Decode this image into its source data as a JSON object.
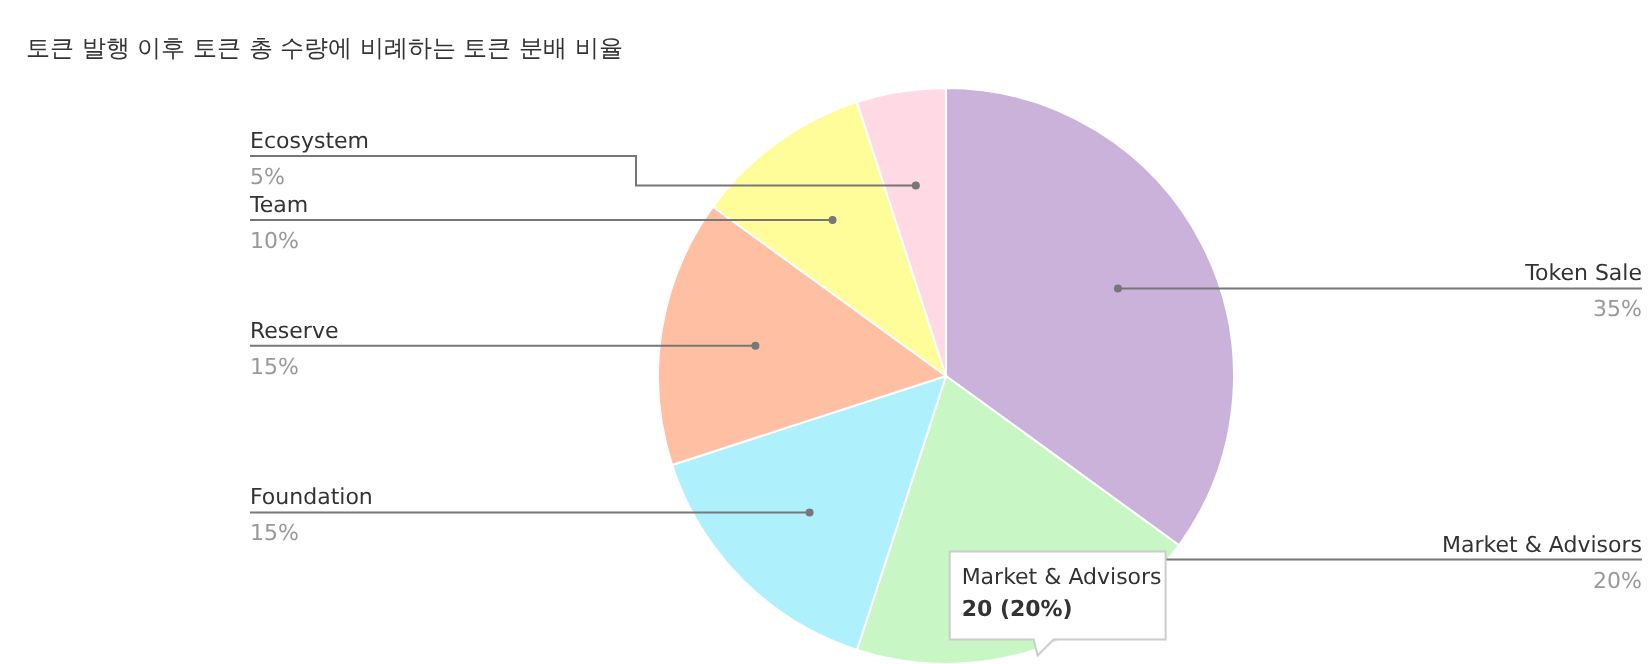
{
  "chart_data": {
    "type": "pie",
    "title": "토큰 발행 이후 토큰 총 수량에 비례하는 토큰 분배 비율",
    "categories": [
      "Token Sale",
      "Market & Advisors",
      "Foundation",
      "Reserve",
      "Team",
      "Ecosystem"
    ],
    "values": [
      35,
      20,
      15,
      15,
      10,
      5
    ],
    "value_labels": [
      "35%",
      "20%",
      "15%",
      "15%",
      "10%",
      "5%"
    ],
    "colors": [
      "#cbb2db",
      "#c8f7c5",
      "#aef1fd",
      "#ffbfa3",
      "#fffd9a",
      "#ffd9e3"
    ],
    "annotations": [
      {
        "text": "Market & Advisors\n20 (20%)",
        "x": "Market & Advisors"
      }
    ]
  }
}
